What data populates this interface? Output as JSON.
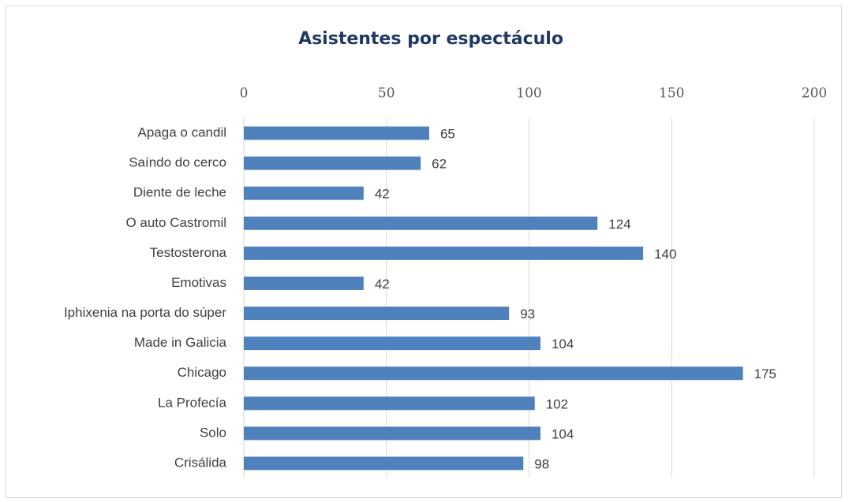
{
  "chart_data": {
    "type": "bar",
    "orientation": "horizontal",
    "title": "Asistentes por espectáculo",
    "categories": [
      "Apaga o candil",
      "Saíndo do cerco",
      "Diente de leche",
      "O auto Castromil",
      "Testosterona",
      "Emotivas",
      "Iphixenia na porta do súper",
      "Made in Galicia",
      "Chicago",
      "La Profecía",
      "Solo",
      "Crisálida"
    ],
    "values": [
      65,
      62,
      42,
      124,
      140,
      42,
      93,
      104,
      175,
      102,
      104,
      98
    ],
    "color": "#4f81bd",
    "xlim": [
      0,
      200
    ],
    "xticks": [
      0,
      50,
      100,
      150,
      200
    ],
    "grid": true
  }
}
